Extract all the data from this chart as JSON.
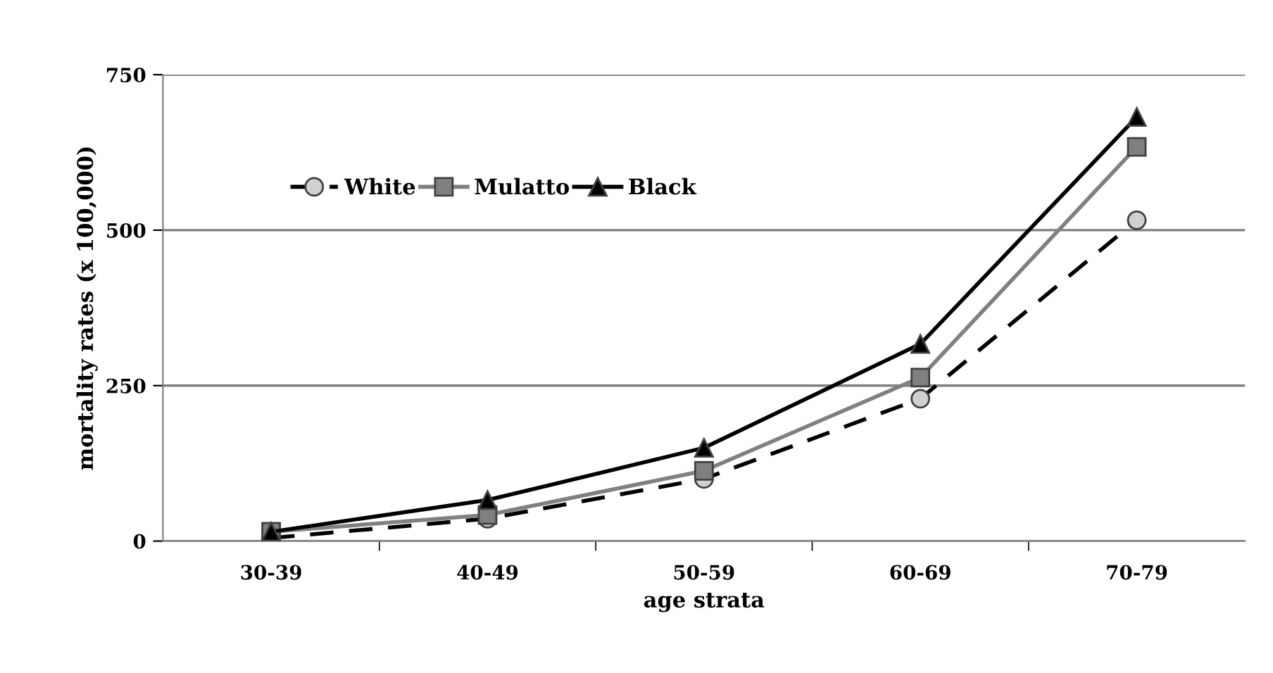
{
  "chart_data": {
    "type": "line",
    "xlabel": "age strata",
    "ylabel": "mortality rates (x 100,000)",
    "categories": [
      "30-39",
      "40-49",
      "50-59",
      "60-69",
      "70-79"
    ],
    "series": [
      {
        "name": "White",
        "color": "#000000",
        "marker": "circle",
        "line_style": "dashed",
        "values": [
          5,
          36,
          100,
          229,
          516
        ]
      },
      {
        "name": "Mulatto",
        "color": "#808080",
        "marker": "square",
        "line_style": "solid",
        "values": [
          15,
          42,
          113,
          263,
          634
        ]
      },
      {
        "name": "Black",
        "color": "#000000",
        "marker": "triangle",
        "line_style": "solid",
        "values": [
          15,
          66,
          150,
          317,
          682
        ]
      }
    ],
    "ylim": [
      0,
      750
    ],
    "yticks": [
      0,
      250,
      500,
      750
    ],
    "grid": "y",
    "legend": "top left"
  }
}
